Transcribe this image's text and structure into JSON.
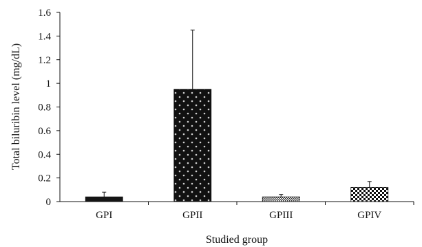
{
  "chart_data": {
    "type": "bar",
    "categories": [
      "GPI",
      "GPII",
      "GPIII",
      "GPIV"
    ],
    "values": [
      0.04,
      0.95,
      0.04,
      0.12
    ],
    "error_bars": [
      0.04,
      0.5,
      0.02,
      0.05
    ],
    "xlabel": "Studied group",
    "ylabel": "Total biluribin level (mg/dL)",
    "ylim": [
      0,
      1.6
    ],
    "yticks": [
      0,
      0.2,
      0.4,
      0.6,
      0.8,
      1,
      1.2,
      1.4,
      1.6
    ],
    "ytick_labels": [
      "0",
      "0.2",
      "0.4",
      "0.6",
      "0.8",
      "1",
      "1.2",
      "1.4",
      "1.6"
    ],
    "grid": false,
    "legend": "none",
    "bar_fills": [
      "solid-dark",
      "dark-with-white-dots",
      "fine-checker-light",
      "coarse-checker"
    ]
  }
}
